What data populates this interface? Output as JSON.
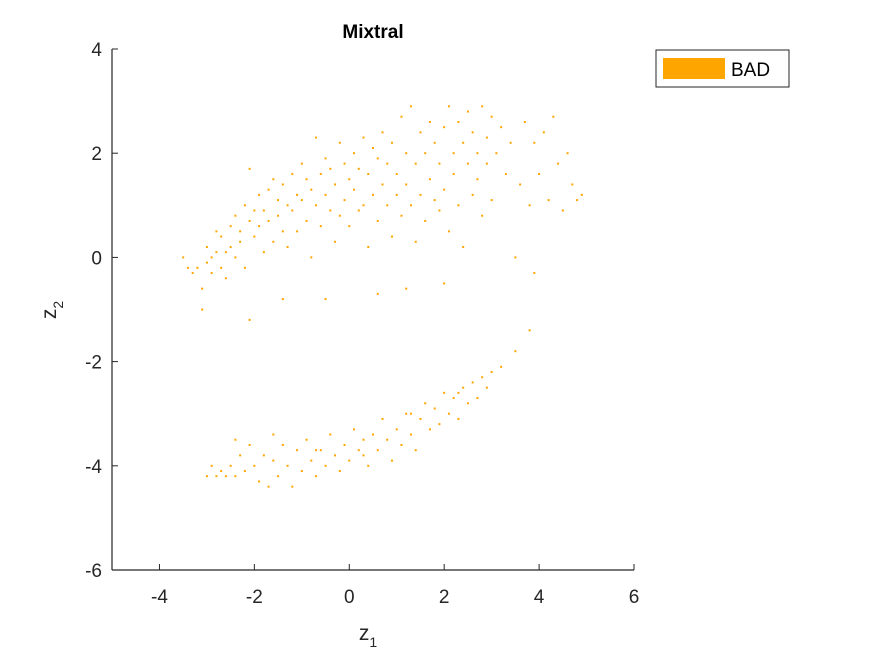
{
  "chart_data": {
    "type": "scatter",
    "title": "Mixtral",
    "xlabel": {
      "base": "z",
      "sub": "1"
    },
    "ylabel": {
      "base": "z",
      "sub": "2"
    },
    "xlim": [
      -5,
      6
    ],
    "ylim": [
      -6,
      4
    ],
    "xticks": [
      -4,
      -2,
      0,
      2,
      4,
      6
    ],
    "yticks": [
      -6,
      -4,
      -2,
      0,
      2,
      4
    ],
    "grid": false,
    "legend_position": "top-right",
    "series": [
      {
        "name": "BAD",
        "color": "#FFA500",
        "points": [
          [
            -3.5,
            0.0
          ],
          [
            -3.4,
            -0.2
          ],
          [
            -3.3,
            -0.3
          ],
          [
            -3.2,
            -0.2
          ],
          [
            -3.1,
            -0.6
          ],
          [
            -3.1,
            -1.0
          ],
          [
            -3.0,
            -0.1
          ],
          [
            -3.0,
            0.2
          ],
          [
            -2.9,
            0.0
          ],
          [
            -2.9,
            -0.3
          ],
          [
            -2.8,
            0.5
          ],
          [
            -2.8,
            0.1
          ],
          [
            -2.7,
            -0.2
          ],
          [
            -2.7,
            0.4
          ],
          [
            -2.6,
            0.1
          ],
          [
            -2.6,
            -0.4
          ],
          [
            -2.5,
            0.6
          ],
          [
            -2.5,
            0.2
          ],
          [
            -2.4,
            0.8
          ],
          [
            -2.4,
            0.0
          ],
          [
            -2.3,
            0.5
          ],
          [
            -2.3,
            0.3
          ],
          [
            -2.2,
            1.0
          ],
          [
            -2.2,
            -0.2
          ],
          [
            -2.1,
            0.7
          ],
          [
            -2.1,
            1.7
          ],
          [
            -2.0,
            0.9
          ],
          [
            -2.0,
            0.4
          ],
          [
            -1.9,
            1.2
          ],
          [
            -1.9,
            0.6
          ],
          [
            -1.8,
            0.9
          ],
          [
            -1.8,
            0.1
          ],
          [
            -1.7,
            1.3
          ],
          [
            -1.7,
            0.7
          ],
          [
            -1.6,
            1.5
          ],
          [
            -1.6,
            0.3
          ],
          [
            -1.5,
            1.1
          ],
          [
            -1.5,
            0.8
          ],
          [
            -1.4,
            0.5
          ],
          [
            -1.4,
            1.4
          ],
          [
            -1.3,
            1.0
          ],
          [
            -1.3,
            0.2
          ],
          [
            -1.2,
            1.6
          ],
          [
            -1.2,
            0.9
          ],
          [
            -1.1,
            1.2
          ],
          [
            -1.1,
            0.5
          ],
          [
            -1.0,
            1.8
          ],
          [
            -1.0,
            1.1
          ],
          [
            -0.9,
            0.7
          ],
          [
            -0.9,
            1.5
          ],
          [
            -0.8,
            1.3
          ],
          [
            -0.8,
            0.0
          ],
          [
            -0.7,
            2.3
          ],
          [
            -0.7,
            1.0
          ],
          [
            -0.6,
            1.6
          ],
          [
            -0.6,
            0.6
          ],
          [
            -0.5,
            1.9
          ],
          [
            -0.5,
            1.2
          ],
          [
            -0.4,
            0.9
          ],
          [
            -0.4,
            1.7
          ],
          [
            -0.3,
            1.4
          ],
          [
            -0.3,
            0.3
          ],
          [
            -0.2,
            2.2
          ],
          [
            -0.2,
            0.8
          ],
          [
            -0.1,
            1.8
          ],
          [
            -0.1,
            1.1
          ],
          [
            0.0,
            1.5
          ],
          [
            0.0,
            0.6
          ],
          [
            0.1,
            2.0
          ],
          [
            0.1,
            1.3
          ],
          [
            0.2,
            0.9
          ],
          [
            0.2,
            1.7
          ],
          [
            0.3,
            2.3
          ],
          [
            0.3,
            1.0
          ],
          [
            0.4,
            1.6
          ],
          [
            0.4,
            0.2
          ],
          [
            0.5,
            2.1
          ],
          [
            0.5,
            1.2
          ],
          [
            0.6,
            1.9
          ],
          [
            0.6,
            0.7
          ],
          [
            0.7,
            1.4
          ],
          [
            0.7,
            2.4
          ],
          [
            0.8,
            1.0
          ],
          [
            0.8,
            1.8
          ],
          [
            0.9,
            2.2
          ],
          [
            0.9,
            0.4
          ],
          [
            1.0,
            1.6
          ],
          [
            1.0,
            1.2
          ],
          [
            1.1,
            2.7
          ],
          [
            1.1,
            0.8
          ],
          [
            1.2,
            2.0
          ],
          [
            1.2,
            1.4
          ],
          [
            1.3,
            2.9
          ],
          [
            1.3,
            1.0
          ],
          [
            1.4,
            1.8
          ],
          [
            1.4,
            0.3
          ],
          [
            1.5,
            2.4
          ],
          [
            1.5,
            1.2
          ],
          [
            1.6,
            2.0
          ],
          [
            1.6,
            0.7
          ],
          [
            1.7,
            2.6
          ],
          [
            1.7,
            1.5
          ],
          [
            1.8,
            1.1
          ],
          [
            1.8,
            2.2
          ],
          [
            1.9,
            1.8
          ],
          [
            1.9,
            0.9
          ],
          [
            2.0,
            2.5
          ],
          [
            2.0,
            1.3
          ],
          [
            2.1,
            2.9
          ],
          [
            2.1,
            0.5
          ],
          [
            2.2,
            2.0
          ],
          [
            2.2,
            1.6
          ],
          [
            2.3,
            2.6
          ],
          [
            2.3,
            1.0
          ],
          [
            2.4,
            2.2
          ],
          [
            2.4,
            0.2
          ],
          [
            2.5,
            1.8
          ],
          [
            2.5,
            2.8
          ],
          [
            2.6,
            1.2
          ],
          [
            2.6,
            2.4
          ],
          [
            2.7,
            2.0
          ],
          [
            2.7,
            1.5
          ],
          [
            2.8,
            2.9
          ],
          [
            2.8,
            0.8
          ],
          [
            2.9,
            2.3
          ],
          [
            2.9,
            1.8
          ],
          [
            3.0,
            2.7
          ],
          [
            3.0,
            1.1
          ],
          [
            3.1,
            2.0
          ],
          [
            3.2,
            2.5
          ],
          [
            3.3,
            1.6
          ],
          [
            3.4,
            2.2
          ],
          [
            3.5,
            0.0
          ],
          [
            3.6,
            1.4
          ],
          [
            3.7,
            2.6
          ],
          [
            3.8,
            1.0
          ],
          [
            3.9,
            2.2
          ],
          [
            4.0,
            1.6
          ],
          [
            4.1,
            2.4
          ],
          [
            4.2,
            1.1
          ],
          [
            4.3,
            2.7
          ],
          [
            4.4,
            1.8
          ],
          [
            4.5,
            0.9
          ],
          [
            4.6,
            2.0
          ],
          [
            4.7,
            1.4
          ],
          [
            4.8,
            1.1
          ],
          [
            4.9,
            1.2
          ],
          [
            3.9,
            -0.3
          ],
          [
            2.0,
            -0.5
          ],
          [
            1.2,
            -0.6
          ],
          [
            -2.1,
            -1.2
          ],
          [
            -1.4,
            -0.8
          ],
          [
            -0.5,
            -0.8
          ],
          [
            0.6,
            -0.7
          ],
          [
            -3.0,
            -4.2
          ],
          [
            -2.9,
            -4.0
          ],
          [
            -2.8,
            -4.2
          ],
          [
            -2.7,
            -4.1
          ],
          [
            -2.6,
            -4.2
          ],
          [
            -2.5,
            -4.0
          ],
          [
            -2.4,
            -4.2
          ],
          [
            -2.3,
            -3.8
          ],
          [
            -2.2,
            -4.1
          ],
          [
            -2.1,
            -3.6
          ],
          [
            -2.0,
            -4.0
          ],
          [
            -1.9,
            -4.3
          ],
          [
            -1.8,
            -3.8
          ],
          [
            -1.7,
            -4.4
          ],
          [
            -1.6,
            -3.9
          ],
          [
            -1.5,
            -4.2
          ],
          [
            -1.4,
            -3.6
          ],
          [
            -1.3,
            -4.0
          ],
          [
            -1.2,
            -4.4
          ],
          [
            -1.1,
            -3.7
          ],
          [
            -1.0,
            -4.1
          ],
          [
            -0.9,
            -3.5
          ],
          [
            -0.8,
            -3.9
          ],
          [
            -0.7,
            -4.2
          ],
          [
            -0.6,
            -3.7
          ],
          [
            -0.5,
            -4.0
          ],
          [
            -0.4,
            -3.4
          ],
          [
            -0.3,
            -3.8
          ],
          [
            -0.2,
            -4.1
          ],
          [
            -0.1,
            -3.6
          ],
          [
            0.0,
            -3.9
          ],
          [
            0.1,
            -3.3
          ],
          [
            0.2,
            -3.7
          ],
          [
            0.3,
            -3.5
          ],
          [
            0.4,
            -4.0
          ],
          [
            0.5,
            -3.4
          ],
          [
            0.6,
            -3.7
          ],
          [
            0.7,
            -3.1
          ],
          [
            0.8,
            -3.5
          ],
          [
            0.9,
            -3.9
          ],
          [
            1.0,
            -3.3
          ],
          [
            1.1,
            -3.6
          ],
          [
            1.2,
            -3.0
          ],
          [
            1.3,
            -3.4
          ],
          [
            1.4,
            -3.7
          ],
          [
            1.5,
            -3.1
          ],
          [
            1.6,
            -2.8
          ],
          [
            1.7,
            -3.3
          ],
          [
            1.8,
            -2.9
          ],
          [
            1.9,
            -3.2
          ],
          [
            2.0,
            -2.6
          ],
          [
            2.1,
            -3.0
          ],
          [
            2.2,
            -2.7
          ],
          [
            2.3,
            -3.1
          ],
          [
            2.4,
            -2.5
          ],
          [
            2.5,
            -2.8
          ],
          [
            2.6,
            -2.4
          ],
          [
            2.7,
            -2.7
          ],
          [
            2.8,
            -2.3
          ],
          [
            2.9,
            -2.5
          ],
          [
            3.0,
            -2.2
          ],
          [
            3.2,
            -2.1
          ],
          [
            3.5,
            -1.8
          ],
          [
            3.8,
            -1.4
          ],
          [
            -1.6,
            -3.4
          ],
          [
            -0.7,
            -3.7
          ],
          [
            0.3,
            -3.8
          ],
          [
            1.3,
            -3.0
          ],
          [
            2.3,
            -2.6
          ],
          [
            -2.4,
            -3.5
          ]
        ]
      }
    ]
  }
}
